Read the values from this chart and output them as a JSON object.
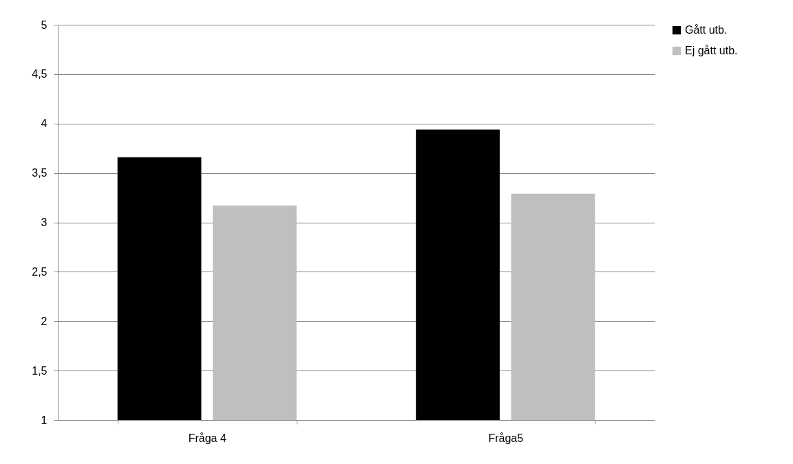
{
  "chart_data": {
    "type": "bar",
    "categories": [
      "Fråga 4",
      "Fråga5"
    ],
    "series": [
      {
        "name": "Gått utb.",
        "color": "#000000",
        "values": [
          3.66,
          3.94
        ]
      },
      {
        "name": "Ej gått utb.",
        "color": "#bfbfbf",
        "values": [
          3.17,
          3.29
        ]
      }
    ],
    "ylim": [
      1,
      5
    ],
    "yticks": [
      1,
      {
        "value": 1.5,
        "label": "1,5"
      },
      2,
      {
        "value": 2.5,
        "label": "2,5"
      },
      3,
      {
        "value": 3.5,
        "label": "3,5"
      },
      4,
      {
        "value": 4.5,
        "label": "4,5"
      },
      5
    ],
    "grid": "y",
    "legend": "right"
  }
}
